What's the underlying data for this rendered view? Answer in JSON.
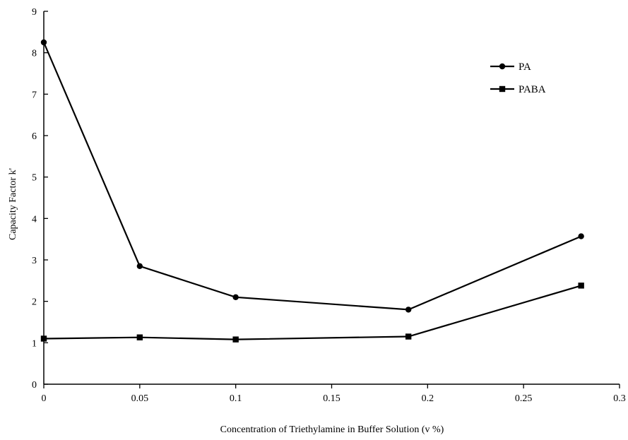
{
  "chart_data": {
    "type": "line",
    "title": "",
    "xlabel": "Concentration of  Triethylamine in Buffer Solution (v %)",
    "ylabel": "Capacity Factor k'",
    "xlim": [
      0,
      0.3
    ],
    "ylim": [
      0,
      9
    ],
    "x_ticks": [
      "0",
      "0.05",
      "0.1",
      "0.15",
      "0.2",
      "0.25",
      "0.3"
    ],
    "y_ticks": [
      "0",
      "1",
      "2",
      "3",
      "4",
      "5",
      "6",
      "7",
      "8",
      "9"
    ],
    "grid": false,
    "legend_position": "top-right",
    "x": [
      0,
      0.05,
      0.1,
      0.19,
      0.28
    ],
    "series": [
      {
        "name": "PA",
        "marker": "circle",
        "values": [
          8.25,
          2.85,
          2.1,
          1.8,
          3.57
        ]
      },
      {
        "name": "PABA",
        "marker": "square",
        "values": [
          1.1,
          1.13,
          1.08,
          1.15,
          2.38
        ]
      }
    ],
    "colors": {
      "line": "#000000",
      "axis": "#000000"
    }
  }
}
